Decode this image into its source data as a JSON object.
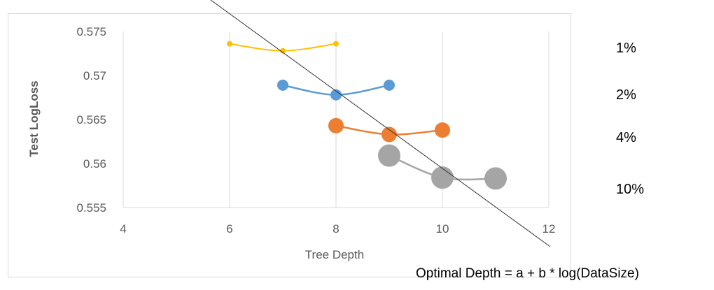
{
  "chart_data": {
    "type": "scatter",
    "title": "",
    "xlabel": "Tree Depth",
    "ylabel": "Test LogLoss",
    "xlim": [
      4,
      12
    ],
    "ylim": [
      0.555,
      0.575
    ],
    "xticks": [
      "4",
      "6",
      "8",
      "10",
      "12"
    ],
    "yticks": [
      "0.555",
      "0.56",
      "0.565",
      "0.57",
      "0.575"
    ],
    "grid": "vertical",
    "series": [
      {
        "name": "1%",
        "color": "#ffc000",
        "x": [
          6,
          7,
          8
        ],
        "y": [
          0.5736,
          0.5728,
          0.5736
        ]
      },
      {
        "name": "2%",
        "color": "#5b9bd5",
        "x": [
          7,
          8,
          9
        ],
        "y": [
          0.5689,
          0.5678,
          0.5689
        ]
      },
      {
        "name": "4%",
        "color": "#ed7d31",
        "x": [
          8,
          9,
          10
        ],
        "y": [
          0.5643,
          0.5633,
          0.5638
        ]
      },
      {
        "name": "10%",
        "color": "#a5a5a5",
        "x": [
          9,
          10,
          11
        ],
        "y": [
          0.5609,
          0.5584,
          0.5583
        ]
      }
    ],
    "annotation": "Optimal Depth = a + b * log(DataSize)"
  }
}
